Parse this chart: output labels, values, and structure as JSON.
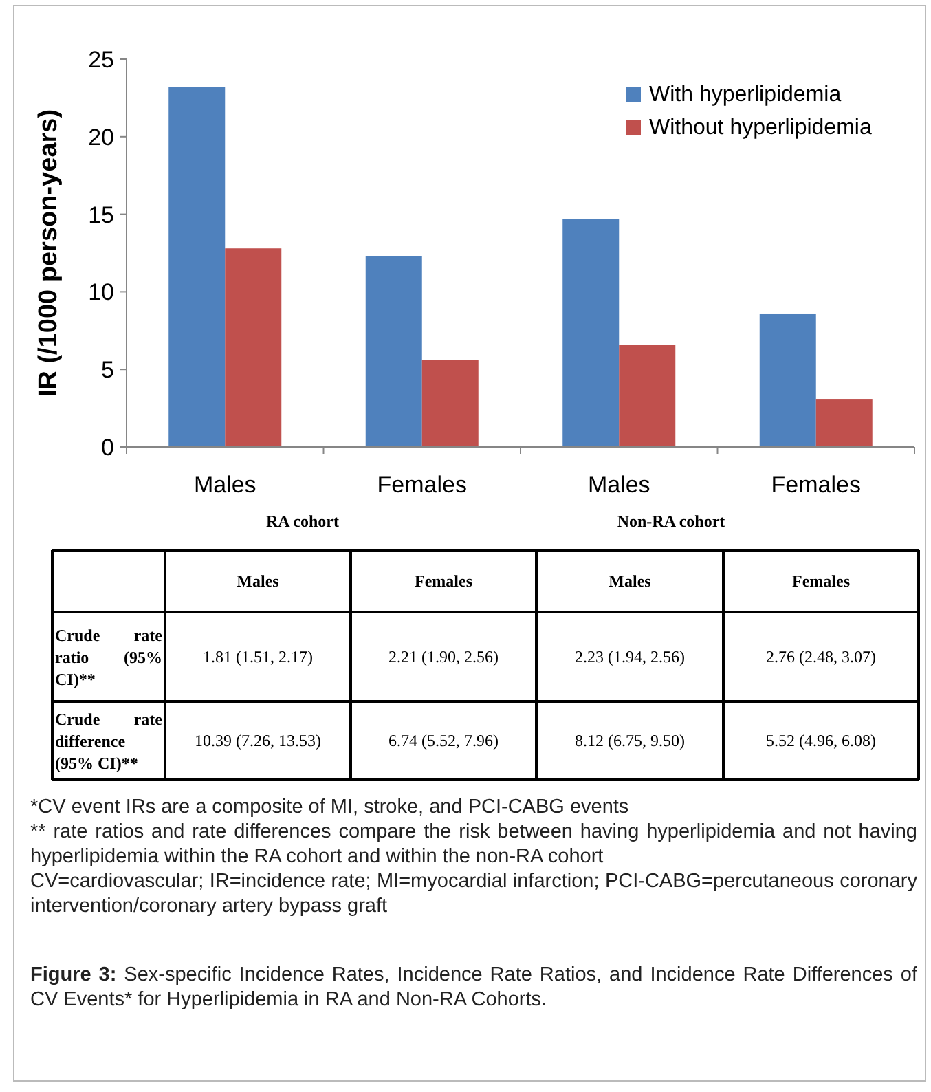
{
  "chart_data": {
    "type": "bar",
    "ylabel": "IR (/1000 person-years)",
    "categories": [
      "Males",
      "Females",
      "Males",
      "Females"
    ],
    "series": [
      {
        "name": "With hyperlipidemia",
        "color": "#4f81bd",
        "values": [
          23.2,
          12.3,
          14.7,
          8.6
        ]
      },
      {
        "name": "Without hyperlipidemia",
        "color": "#c0504d",
        "values": [
          12.8,
          5.6,
          6.6,
          3.1
        ]
      }
    ],
    "ylim": [
      0,
      25
    ],
    "yticks": [
      0,
      5,
      10,
      15,
      20,
      25
    ],
    "grid": false,
    "legend": "top right",
    "annotations": [
      "RA cohort",
      "Non-RA cohort",
      "Males",
      "Females",
      "Males",
      "Females",
      "Crude rate ratio (95% CI)**",
      "1.81 (1.51, 2.17)",
      "2.21 (1.90, 2.56)",
      "2.23 (1.94, 2.56)",
      "2.76 (2.48, 3.07)",
      "Crude rate difference (95% CI)**",
      "10.39 (7.26, 13.53)",
      "6.74 (5.52, 7.96)",
      "8.12 (6.75, 9.50)",
      "5.52 (4.96, 6.08)",
      "*CV event IRs are a composite of MI, stroke, and PCI-CABG events",
      "** rate ratios and rate differences compare the risk between having hyperlipidemia and not having hyperlipidemia within the RA cohort and within the non-RA cohort",
      "CV=cardiovascular; IR=incidence rate; MI=myocardial infarction; PCI-CABG=percutaneous coronary intervention/coronary artery bypass graft",
      "Figure 3: Sex-specific Incidence Rates, Incidence Rate Ratios, and Incidence Rate Differences of CV Events* for Hyperlipidemia in RA and Non-RA Cohorts."
    ]
  }
}
